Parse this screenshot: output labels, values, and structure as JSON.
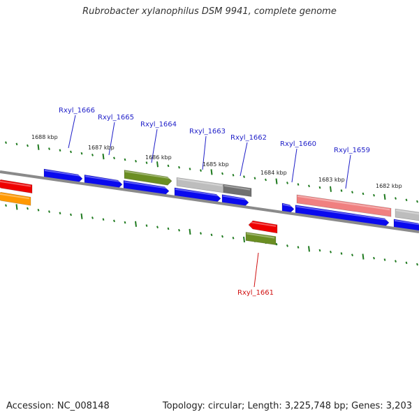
{
  "title": "Rubrobacter xylanophilus DSM 9941, complete genome",
  "footer": {
    "accession": "Accession: NC_008148",
    "summary": "Topology: circular; Length: 3,225,748 bp; Genes: 3,203"
  },
  "scale_labels": [
    "1688 kbp",
    "1687 kbp",
    "1686 kbp",
    "1685 kbp",
    "1684 kbp",
    "1683 kbp",
    "1682 kbp"
  ],
  "gene_labels": [
    {
      "name": "Rxyl_1666",
      "color": "#1e1ec8"
    },
    {
      "name": "Rxyl_1665",
      "color": "#1e1ec8"
    },
    {
      "name": "Rxyl_1664",
      "color": "#1e1ec8"
    },
    {
      "name": "Rxyl_1663",
      "color": "#1e1ec8"
    },
    {
      "name": "Rxyl_1662",
      "color": "#1e1ec8"
    },
    {
      "name": "Rxyl_1660",
      "color": "#1e1ec8"
    },
    {
      "name": "Rxyl_1659",
      "color": "#1e1ec8"
    },
    {
      "name": "Rxyl_1661",
      "color": "#d01010"
    }
  ],
  "colors": {
    "backbone": "#8a8a8a",
    "tick": "#1f7a1f",
    "cds_blue": "#0a0aee",
    "cds_green": "#6b8e23",
    "cds_red": "#ee0000",
    "cds_orange": "#ff9900",
    "cds_gray": "#bdbdbd",
    "cds_darkgray": "#707070",
    "cds_pink": "#f08080"
  }
}
